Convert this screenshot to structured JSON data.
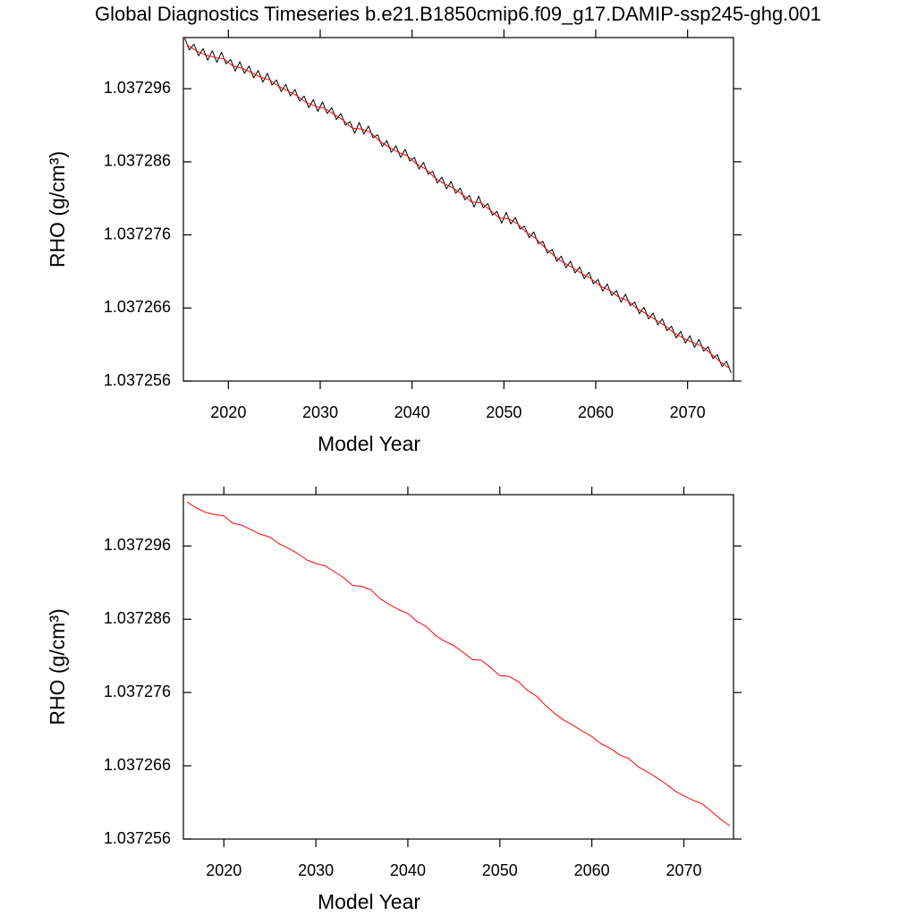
{
  "chart_data": [
    {
      "type": "line",
      "title": "Global Diagnostics Timeseries b.e21.B1850cmip6.f09_g17.DAMIP-ssp245-ghg.001",
      "xlabel": "Model Year",
      "ylabel": "RHO (g/cm³)",
      "xlim": [
        2015.1,
        2075.0
      ],
      "xticks": [
        2020,
        2030,
        2040,
        2050,
        2060,
        2070
      ],
      "ylim": [
        1.037256,
        1.037303
      ],
      "yticks": [
        1.037256,
        1.037266,
        1.037276,
        1.037286,
        1.037296
      ],
      "series": [
        {
          "color": "#000000",
          "x": [
            2015.25,
            2015.75,
            2016.25,
            2016.75,
            2017.25,
            2017.75,
            2018.25,
            2018.75,
            2019.25,
            2019.75,
            2020.25,
            2020.75,
            2021.25,
            2021.75,
            2022.25,
            2022.75,
            2023.25,
            2023.75,
            2024.25,
            2024.75,
            2025.25,
            2025.75,
            2026.25,
            2026.75,
            2027.25,
            2027.75,
            2028.25,
            2028.75,
            2029.25,
            2029.75,
            2030.25,
            2030.75,
            2031.25,
            2031.75,
            2032.25,
            2032.75,
            2033.25,
            2033.75,
            2034.25,
            2034.75,
            2035.25,
            2035.75,
            2036.25,
            2036.75,
            2037.25,
            2037.75,
            2038.25,
            2038.75,
            2039.25,
            2039.75,
            2040.25,
            2040.75,
            2041.25,
            2041.75,
            2042.25,
            2042.75,
            2043.25,
            2043.75,
            2044.25,
            2044.75,
            2045.25,
            2045.75,
            2046.25,
            2046.75,
            2047.25,
            2047.75,
            2048.25,
            2048.75,
            2049.25,
            2049.75,
            2050.25,
            2050.75,
            2051.25,
            2051.75,
            2052.25,
            2052.75,
            2053.25,
            2053.75,
            2054.25,
            2054.75,
            2055.25,
            2055.75,
            2056.25,
            2056.75,
            2057.25,
            2057.75,
            2058.25,
            2058.75,
            2059.25,
            2059.75,
            2060.25,
            2060.75,
            2061.25,
            2061.75,
            2062.25,
            2062.75,
            2063.25,
            2063.75,
            2064.25,
            2064.75,
            2065.25,
            2065.75,
            2066.25,
            2066.75,
            2067.25,
            2067.75,
            2068.25,
            2068.75,
            2069.25,
            2069.75,
            2070.25,
            2070.75,
            2071.25,
            2071.75,
            2072.25,
            2072.75,
            2073.25,
            2073.75,
            2074.25,
            2074.75
          ],
          "values": [
            1.0373029,
            1.0373013,
            1.0373021,
            1.0373005,
            1.0373015,
            1.0372999,
            1.0373012,
            1.0372996,
            1.037301,
            1.0372994,
            1.0373,
            1.0372984,
            1.0372997,
            1.0372981,
            1.0372991,
            1.0372975,
            1.0372985,
            1.0372969,
            1.0372981,
            1.0372965,
            1.0372972,
            1.0372956,
            1.0372966,
            1.037295,
            1.0372959,
            1.0372943,
            1.037295,
            1.0372934,
            1.0372945,
            1.0372929,
            1.0372942,
            1.0372926,
            1.0372934,
            1.0372918,
            1.0372926,
            1.037291,
            1.0372915,
            1.0372899,
            1.0372914,
            1.0372898,
            1.0372909,
            1.0372893,
            1.0372897,
            1.0372881,
            1.0372889,
            1.0372873,
            1.0372882,
            1.0372866,
            1.0372877,
            1.0372861,
            1.0372866,
            1.037285,
            1.0372859,
            1.0372843,
            1.0372847,
            1.0372831,
            1.0372839,
            1.0372823,
            1.0372833,
            1.0372817,
            1.0372824,
            1.0372808,
            1.0372814,
            1.0372798,
            1.0372813,
            1.0372797,
            1.0372803,
            1.0372787,
            1.0372792,
            1.0372776,
            1.0372791,
            1.0372775,
            1.0372784,
            1.0372768,
            1.0372772,
            1.0372756,
            1.0372764,
            1.0372748,
            1.0372751,
            1.0372735,
            1.037274,
            1.0372724,
            1.0372731,
            1.0372715,
            1.0372724,
            1.0372708,
            1.0372716,
            1.03727,
            1.0372709,
            1.0372693,
            1.0372699,
            1.0372683,
            1.0372693,
            1.0372677,
            1.0372684,
            1.0372668,
            1.0372679,
            1.0372663,
            1.0372668,
            1.0372652,
            1.0372661,
            1.0372645,
            1.0372653,
            1.0372637,
            1.0372645,
            1.0372629,
            1.0372635,
            1.0372619,
            1.0372628,
            1.0372612,
            1.0372622,
            1.0372606,
            1.0372617,
            1.0372601,
            1.0372607,
            1.0372591,
            1.0372596,
            1.037258,
            1.0372587,
            1.0372571
          ]
        },
        {
          "color": "#ff0000",
          "x": [
            2015.5,
            2016.5,
            2017.5,
            2018.5,
            2019.5,
            2020.5,
            2021.5,
            2022.5,
            2023.5,
            2024.5,
            2025.5,
            2026.5,
            2027.5,
            2028.5,
            2029.5,
            2030.5,
            2031.5,
            2032.5,
            2033.5,
            2034.5,
            2035.5,
            2036.5,
            2037.5,
            2038.5,
            2039.5,
            2040.5,
            2041.5,
            2042.5,
            2043.5,
            2044.5,
            2045.5,
            2046.5,
            2047.5,
            2048.5,
            2049.5,
            2050.5,
            2051.5,
            2052.5,
            2053.5,
            2054.5,
            2055.5,
            2056.5,
            2057.5,
            2058.5,
            2059.5,
            2060.5,
            2061.5,
            2062.5,
            2063.5,
            2064.5,
            2065.5,
            2066.5,
            2067.5,
            2068.5,
            2069.5,
            2070.5,
            2071.5,
            2072.5,
            2073.5,
            2074.5
          ],
          "values": [
            1.037302,
            1.0373012,
            1.0373006,
            1.0373003,
            1.0373001,
            1.0372991,
            1.0372988,
            1.0372982,
            1.0372976,
            1.0372972,
            1.0372963,
            1.0372957,
            1.037295,
            1.0372941,
            1.0372936,
            1.0372933,
            1.0372925,
            1.0372917,
            1.0372906,
            1.0372905,
            1.03729,
            1.0372888,
            1.037288,
            1.0372873,
            1.0372868,
            1.0372857,
            1.037285,
            1.0372838,
            1.037283,
            1.0372824,
            1.0372815,
            1.0372805,
            1.0372804,
            1.0372794,
            1.0372783,
            1.0372782,
            1.0372775,
            1.0372763,
            1.0372755,
            1.0372742,
            1.0372731,
            1.0372722,
            1.0372715,
            1.0372707,
            1.03727,
            1.037269,
            1.0372684,
            1.0372675,
            1.037267,
            1.0372659,
            1.0372652,
            1.0372644,
            1.0372636,
            1.0372626,
            1.0372619,
            1.0372613,
            1.0372608,
            1.0372598,
            1.0372587,
            1.0372578
          ]
        }
      ]
    },
    {
      "type": "line",
      "xlabel": "Model Year",
      "ylabel": "RHO (g/cm³)",
      "xlim": [
        2015.6,
        2075.4
      ],
      "xticks": [
        2020,
        2030,
        2040,
        2050,
        2060,
        2070
      ],
      "ylim": [
        1.037256,
        1.037303
      ],
      "yticks": [
        1.037256,
        1.037266,
        1.037276,
        1.037286,
        1.037296
      ],
      "series": [
        {
          "color": "#ff0000",
          "x": [
            2016,
            2017,
            2018,
            2019,
            2020,
            2021,
            2022,
            2023,
            2024,
            2025,
            2026,
            2027,
            2028,
            2029,
            2030,
            2031,
            2032,
            2033,
            2034,
            2035,
            2036,
            2037,
            2038,
            2039,
            2040,
            2041,
            2042,
            2043,
            2044,
            2045,
            2046,
            2047,
            2048,
            2049,
            2050,
            2051,
            2052,
            2053,
            2054,
            2055,
            2056,
            2057,
            2058,
            2059,
            2060,
            2061,
            2062,
            2063,
            2064,
            2065,
            2066,
            2067,
            2068,
            2069,
            2070,
            2071,
            2072,
            2073,
            2074,
            2075
          ],
          "values": [
            1.037302,
            1.0373012,
            1.0373006,
            1.0373003,
            1.0373001,
            1.0372991,
            1.0372988,
            1.0372982,
            1.0372976,
            1.0372972,
            1.0372963,
            1.0372957,
            1.037295,
            1.0372941,
            1.0372936,
            1.0372933,
            1.0372925,
            1.0372917,
            1.0372906,
            1.0372905,
            1.03729,
            1.0372888,
            1.037288,
            1.0372873,
            1.0372868,
            1.0372857,
            1.037285,
            1.0372838,
            1.037283,
            1.0372824,
            1.0372815,
            1.0372805,
            1.0372804,
            1.0372794,
            1.0372783,
            1.0372782,
            1.0372775,
            1.0372763,
            1.0372755,
            1.0372742,
            1.0372731,
            1.0372722,
            1.0372715,
            1.0372707,
            1.03727,
            1.037269,
            1.0372684,
            1.0372675,
            1.037267,
            1.0372659,
            1.0372652,
            1.0372644,
            1.0372636,
            1.0372626,
            1.0372619,
            1.0372613,
            1.0372608,
            1.0372598,
            1.0372587,
            1.0372578
          ]
        }
      ]
    }
  ]
}
